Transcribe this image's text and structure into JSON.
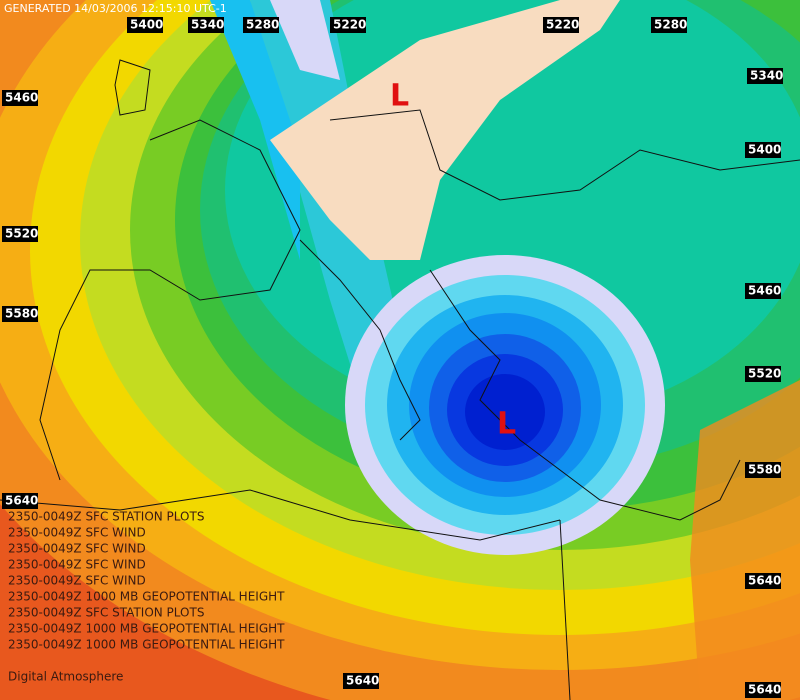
{
  "header": {
    "generated": "GENERATED 14/03/2006 12:15:10 UTC-1"
  },
  "contour_labels": [
    "5400",
    "5340",
    "5280",
    "5220",
    "5220",
    "5280",
    "5340",
    "5460",
    "5400",
    "5520",
    "5460",
    "5580",
    "5520",
    "5640",
    "5580",
    "5640",
    "5640",
    "5640"
  ],
  "lows": [
    "L",
    "L"
  ],
  "legend": [
    "2350-0049Z SFC STATION PLOTS",
    "2350-0049Z SFC WIND",
    "2350-0049Z SFC WIND",
    "2350-0049Z SFC WIND",
    "2350-0049Z SFC WIND",
    "2350-0049Z 1000 MB GEOPOTENTIAL HEIGHT",
    "2350-0049Z SFC STATION PLOTS",
    "2350-0049Z 1000 MB GEOPOTENTIAL HEIGHT",
    "2350-0049Z 1000 MB GEOPOTENTIAL HEIGHT"
  ],
  "footer": "Digital Atmosphere"
}
